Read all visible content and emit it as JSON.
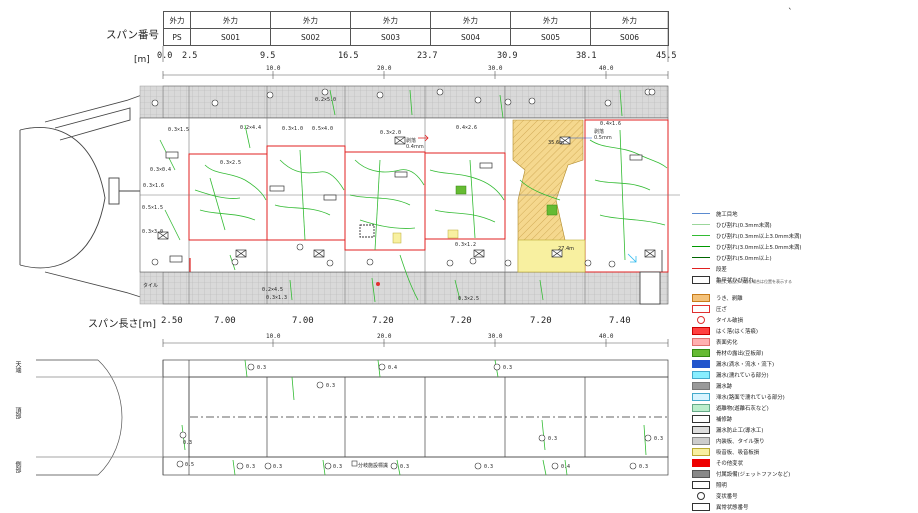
{
  "header": {
    "span_no_label": "スパン番号",
    "unit_label": "[m]",
    "span_len_label": "スパン長さ[m]",
    "external_force": [
      "外力",
      "外力",
      "外力",
      "外力",
      "外力",
      "外力",
      "外力"
    ],
    "span_ids": [
      "PS",
      "S001",
      "S002",
      "S003",
      "S004",
      "S005",
      "S006"
    ],
    "positions": [
      "0.0",
      "2.5",
      "9.5",
      "16.5",
      "23.7",
      "30.9",
      "38.1",
      "45.5"
    ],
    "span_lengths": [
      "2.50",
      "7.00",
      "7.00",
      "7.20",
      "7.20",
      "7.20",
      "7.40"
    ],
    "scale_ticks": [
      "10.0",
      "20.0",
      "30.0",
      "40.0"
    ]
  },
  "lower_section": {
    "side_labels": [
      "天端",
      "頂部",
      "側部"
    ],
    "scale_ticks": [
      "10.0",
      "20.0",
      "30.0",
      "40.0"
    ]
  },
  "side_view": {
    "left_label": "タイル"
  },
  "notes": {
    "annot_1": "0.3×1.5",
    "annot_2": "0.2×4.4",
    "annot_3": "0.3×1.0",
    "annot_4": "0.5×4.0",
    "annot_5": "0.3×2.0",
    "annot_6": "0.4×2.6",
    "annot_7": "0.4×1.6",
    "annot_8": "0.3×2.5",
    "annot_9": "0.3×0.4",
    "annot_10": "0.3×1.6",
    "annot_11": "0.5×1.5",
    "annot_12": "0.3×3.0",
    "annot_13": "0.2×5.0",
    "annot_14": "0.2×4.5",
    "annot_15": "0.3×1.3",
    "annot_16": "0.3×2.5",
    "annot_17": "0.3×1.2",
    "patch_1": "剥落\n0.4mm",
    "patch_2": "剥落\n0.5mm",
    "yellow_1": "35.6m",
    "yellow_2": "27.4m",
    "lower_1": "0.3",
    "lower_2": "0.3",
    "lower_3": "0.4",
    "lower_4": "0.3",
    "lower_5": "0.3",
    "lower_6": "0.3",
    "lower_7": "0.3",
    "lower_8": "0.5",
    "lower_9": "0.3",
    "lower_10": "0.3",
    "lower_11": "0.3",
    "lower_12": "0.3",
    "lower_13": "0.3",
    "lower_14": "0.4",
    "lower_15": "0.3",
    "lower_note": "分岐施設標識"
  },
  "legend": [
    {
      "label": "施工目地",
      "kind": "line",
      "color": "#5b8bd0"
    },
    {
      "label": "ひび割れ(0.3mm未満)",
      "kind": "line",
      "color": "#9bd69b"
    },
    {
      "label": "ひび割れ(0.3mm以上3.0mm未満)",
      "kind": "line",
      "color": "#33bb33"
    },
    {
      "label": "ひび割れ(3.0mm以上5.0mm未満)",
      "kind": "line",
      "color": "#009900"
    },
    {
      "label": "ひび割れ(5.0mm以上)",
      "kind": "line",
      "color": "#006600"
    },
    {
      "label": "段差",
      "kind": "line",
      "color": "#e02020"
    },
    {
      "label": "亀甲状ひび割れ",
      "kind": "box",
      "color": "#ffffff",
      "border": "#333333"
    },
    {
      "label": "うき、剥離",
      "kind": "box",
      "color": "#f4c27a",
      "border": "#c77b1a"
    },
    {
      "label": "圧ざ",
      "kind": "box",
      "color": "#ffffff",
      "border": "#e03030"
    },
    {
      "label": "タイル破損",
      "kind": "circle",
      "color": "#e03030"
    },
    {
      "label": "はく落(はく落痕)",
      "kind": "box",
      "color": "#ff4040",
      "border": "#cc0000"
    },
    {
      "label": "表面劣化",
      "kind": "box",
      "color": "#ffb0b0",
      "border": "#e07070"
    },
    {
      "label": "骨材の露出(豆板部)",
      "kind": "box",
      "color": "#66bb33",
      "border": "#338811"
    },
    {
      "label": "漏水(滴水・流水・流下)",
      "kind": "icon",
      "color": "#2255cc",
      "border": "#2255cc"
    },
    {
      "label": "漏水(濡れている部分)",
      "kind": "box",
      "color": "#88eeff",
      "border": "#44aacc"
    },
    {
      "label": "漏水跡",
      "kind": "box",
      "color": "#999999",
      "border": "#777777"
    },
    {
      "label": "滞水(路面で濡れている部分)",
      "kind": "box",
      "color": "#d8f4ff",
      "border": "#44aacc"
    },
    {
      "label": "遊離物(遊離石灰など)",
      "kind": "box",
      "color": "#bbeecc",
      "border": "#66aa88"
    },
    {
      "label": "補修跡",
      "kind": "box",
      "color": "#ffffff",
      "border": "#333333"
    },
    {
      "label": "漏水防止工(導水工)",
      "kind": "box",
      "color": "#dddddd",
      "border": "#333333"
    },
    {
      "label": "内装板、タイル張り",
      "kind": "box",
      "color": "#cccccc",
      "border": "#888888"
    },
    {
      "label": "吸音板、吸音板損",
      "kind": "box",
      "color": "#f8f0a0",
      "border": "#bbaa33"
    },
    {
      "label": "その他変状",
      "kind": "box",
      "color": "#ee0000",
      "border": "#ee0000"
    },
    {
      "label": "付属設備(ジェットファンなど)",
      "kind": "box",
      "color": "#888888",
      "border": "#555555"
    },
    {
      "label": "照明",
      "kind": "box",
      "color": "#ffffff",
      "border": "#333333"
    },
    {
      "label": "変状番号",
      "kind": "circle",
      "color": "#ffffff",
      "border": "#333333"
    },
    {
      "label": "異常状態番号",
      "kind": "box",
      "color": "#ffffff",
      "border": "#333333"
    }
  ],
  "legend_note": "発生に着目が可能な場合は位置を表示する",
  "colors": {
    "span_border": "#e02020",
    "grid_gray": "#bbbbbb",
    "crack": "#33bb33",
    "grid": "#c8c8c8"
  }
}
